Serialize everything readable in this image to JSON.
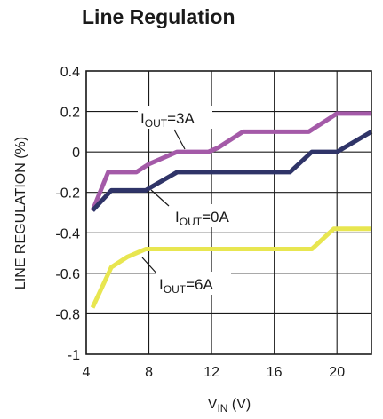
{
  "chart_data": {
    "type": "line",
    "title": "Line Regulation",
    "xlabel": {
      "main": "V",
      "sub": "IN",
      "suffix": " (V)"
    },
    "ylabel": "LINE REGULATION (%)",
    "xlim": [
      4,
      22.2
    ],
    "ylim": [
      -1,
      0.4
    ],
    "xticks": [
      4,
      8,
      12,
      16,
      20
    ],
    "yticks": [
      0.4,
      0.2,
      0,
      -0.2,
      -0.4,
      -0.6,
      -0.8,
      -1
    ],
    "ytick_labels": [
      "0.4",
      "0.2",
      "0",
      "-0.2",
      "-0.4",
      "-0.6",
      "-0.8",
      "-1"
    ],
    "grid": true,
    "series": [
      {
        "name": "IOUT=3A",
        "label": {
          "main": "I",
          "sub": "OUT",
          "suffix": "=3A"
        },
        "color": "#a45aa8",
        "x": [
          4.4,
          5.4,
          7.2,
          8.0,
          9.8,
          11.8,
          12.4,
          14.0,
          16.0,
          17.0,
          18.2,
          20.0,
          22.2
        ],
        "y": [
          -0.29,
          -0.1,
          -0.1,
          -0.06,
          0.0,
          0.0,
          0.02,
          0.1,
          0.1,
          0.1,
          0.1,
          0.19,
          0.19
        ]
      },
      {
        "name": "IOUT=0A",
        "label": {
          "main": "I",
          "sub": "OUT",
          "suffix": "=0A"
        },
        "color": "#2f3468",
        "x": [
          4.4,
          5.6,
          7.8,
          8.0,
          9.8,
          12.0,
          14.0,
          16.0,
          17.0,
          18.4,
          20.0,
          22.2
        ],
        "y": [
          -0.29,
          -0.19,
          -0.19,
          -0.18,
          -0.1,
          -0.1,
          -0.1,
          -0.1,
          -0.1,
          0.0,
          0.0,
          0.1
        ]
      },
      {
        "name": "IOUT=6A",
        "label": {
          "main": "I",
          "sub": "OUT",
          "suffix": "=6A"
        },
        "color": "#e8e650",
        "x": [
          4.4,
          5.6,
          6.6,
          7.8,
          10.0,
          12.0,
          14.0,
          16.0,
          18.4,
          19.8,
          22.2
        ],
        "y": [
          -0.77,
          -0.57,
          -0.52,
          -0.48,
          -0.48,
          -0.48,
          -0.48,
          -0.48,
          -0.48,
          -0.38,
          -0.38
        ]
      }
    ]
  }
}
